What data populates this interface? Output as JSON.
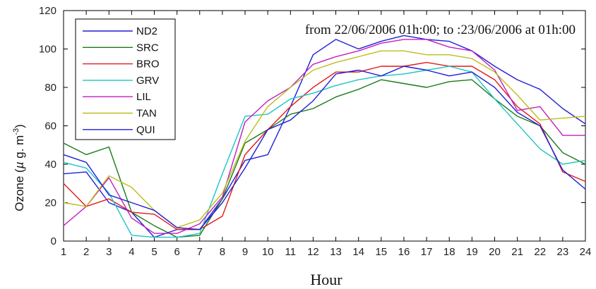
{
  "chart_data": {
    "type": "line",
    "title": "",
    "annotation": "from 22/06/2006 01h:00; to :23/06/2006 at 01h:00",
    "xlabel": "Hour",
    "ylabel_parts": {
      "before": "Ozone (",
      "greek": "µ",
      "middle": " g. m",
      "sup": "-3",
      "after": ")"
    },
    "xlim": [
      1,
      24
    ],
    "ylim": [
      0,
      120
    ],
    "x": [
      1,
      2,
      3,
      4,
      5,
      6,
      7,
      8,
      9,
      10,
      11,
      12,
      13,
      14,
      15,
      16,
      17,
      18,
      19,
      20,
      21,
      22,
      23,
      24
    ],
    "x_ticks": [
      "1",
      "2",
      "3",
      "4",
      "5",
      "6",
      "7",
      "8",
      "9",
      "10",
      "11",
      "12",
      "13",
      "14",
      "15",
      "16",
      "17",
      "18",
      "19",
      "20",
      "21",
      "22",
      "23",
      "24"
    ],
    "y_ticks": [
      "0",
      "20",
      "40",
      "60",
      "80",
      "100",
      "120"
    ],
    "y_tick_values": [
      0,
      20,
      40,
      60,
      80,
      100,
      120
    ],
    "legend_position": "top-left",
    "series": [
      {
        "name": "ND2",
        "color": "#1f1fd6",
        "values": [
          35,
          36,
          20,
          15,
          2,
          6,
          6,
          22,
          42,
          45,
          70,
          97,
          105,
          100,
          104,
          107,
          105,
          104,
          99,
          91,
          84,
          79,
          69,
          61
        ]
      },
      {
        "name": "SRC",
        "color": "#1a7a1a",
        "values": [
          51,
          45,
          49,
          15,
          8,
          2,
          3,
          22,
          51,
          58,
          66,
          69,
          75,
          79,
          84,
          82,
          80,
          83,
          84,
          74,
          65,
          60,
          46,
          40
        ]
      },
      {
        "name": "BRO",
        "color": "#e01a1a",
        "values": [
          30,
          18,
          22,
          15,
          14,
          6,
          6,
          13,
          45,
          58,
          70,
          80,
          88,
          88,
          91,
          91,
          93,
          91,
          91,
          84,
          70,
          61,
          36,
          31
        ]
      },
      {
        "name": "GRV",
        "color": "#1ec4c4",
        "values": [
          41,
          38,
          25,
          3,
          2,
          2,
          4,
          35,
          65,
          66,
          74,
          77,
          81,
          84,
          86,
          87,
          89,
          91,
          88,
          74,
          61,
          48,
          40,
          42
        ]
      },
      {
        "name": "LIL",
        "color": "#c21ec2",
        "values": [
          8,
          18,
          33,
          12,
          4,
          4,
          9,
          23,
          62,
          73,
          80,
          92,
          96,
          99,
          103,
          105,
          105,
          101,
          99,
          89,
          68,
          70,
          55,
          55
        ]
      },
      {
        "name": "TAN",
        "color": "#bdbd1a",
        "values": [
          20,
          18,
          34,
          28,
          16,
          7,
          11,
          25,
          52,
          70,
          80,
          89,
          93,
          96,
          99,
          99,
          97,
          97,
          95,
          88,
          76,
          63,
          64,
          65
        ]
      },
      {
        "name": "QUI",
        "color": "#1f1fd6",
        "values": [
          45,
          41,
          24,
          20,
          16,
          7,
          6,
          20,
          38,
          58,
          63,
          73,
          87,
          89,
          86,
          91,
          89,
          86,
          88,
          80,
          67,
          60,
          37,
          27
        ]
      }
    ]
  }
}
